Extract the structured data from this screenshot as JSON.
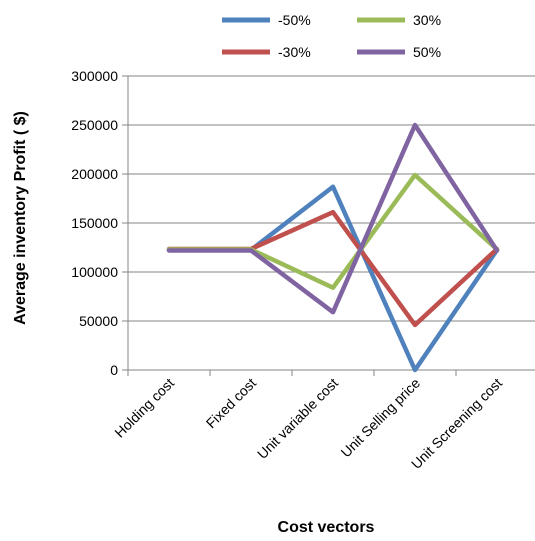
{
  "chart_data": {
    "type": "line",
    "title": "",
    "xlabel": "Cost vectors",
    "ylabel": "Average inventory Profit ( $)",
    "categories": [
      "Holding cost",
      "Fixed cost",
      "Unit variable cost",
      "Unit Selling price",
      "Unit Screening cost"
    ],
    "ylim": [
      0,
      300000
    ],
    "yticks": [
      0,
      50000,
      100000,
      150000,
      200000,
      250000,
      300000
    ],
    "grid": "horizontal",
    "legend_position": "top",
    "series": [
      {
        "name": "-50%",
        "color": "#4f81bd",
        "values": [
          122500,
          122500,
          187000,
          0,
          122500
        ]
      },
      {
        "name": "-30%",
        "color": "#c0504d",
        "values": [
          123500,
          123500,
          161000,
          46000,
          123500
        ]
      },
      {
        "name": "30%",
        "color": "#9bbb59",
        "values": [
          123000,
          123000,
          84000,
          199000,
          123000
        ]
      },
      {
        "name": "50%",
        "color": "#8064a2",
        "values": [
          122000,
          122000,
          59000,
          250000,
          122000
        ]
      }
    ]
  }
}
